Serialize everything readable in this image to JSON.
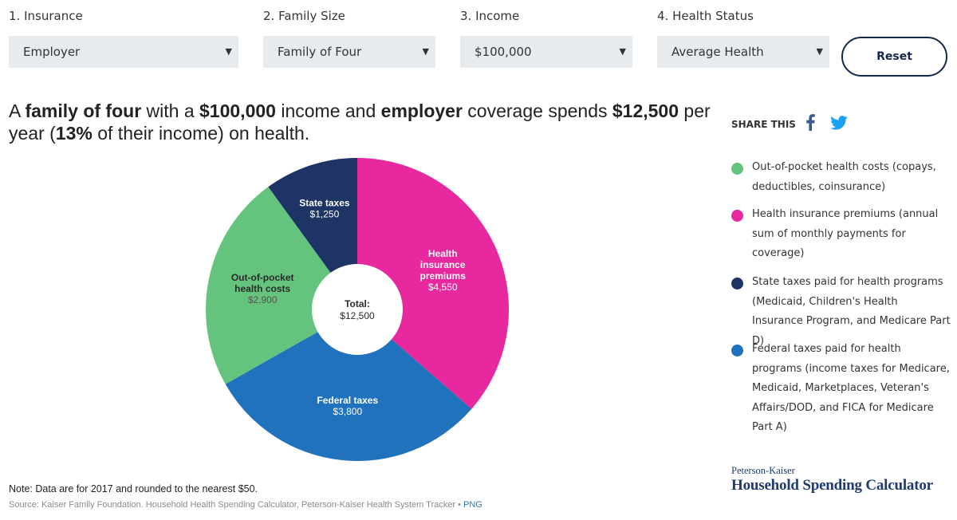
{
  "filters": [
    {
      "label": "1. Insurance",
      "value": "Employer"
    },
    {
      "label": "2. Family Size",
      "value": "Family of Four"
    },
    {
      "label": "3. Income",
      "value": "$100,000"
    },
    {
      "label": "4. Health Status",
      "value": "Average Health"
    }
  ],
  "reset_label": "Reset",
  "headline": {
    "p1": "A ",
    "b1": "family of four",
    "p2": " with a ",
    "b2": "$100,000",
    "p3": " income and ",
    "b3": "employer",
    "p4": " coverage spends ",
    "b4": "$12,500",
    "p5": " per year (",
    "b5": "13%",
    "p6": " of their income) on health."
  },
  "share": {
    "label": "SHARE THIS",
    "icons": [
      "facebook-icon",
      "twitter-icon"
    ],
    "facebook_color": "#3b5998",
    "twitter_color": "#1da1f2"
  },
  "legend": [
    {
      "text": "Out-of-pocket health costs (copays, deductibles, coinsurance)",
      "color": "#64c47d"
    },
    {
      "text": "Health insurance premiums (annual sum of monthly payments for coverage)",
      "color": "#e8289e"
    },
    {
      "text": "State taxes paid for health programs (Medicaid, Children's Health Insurance Program, and Medicare Part D)",
      "color": "#1d3464"
    },
    {
      "text": "Federal taxes paid for health programs (income taxes for Medicare, Medicaid, Marketplaces, Veteran's Affairs/DOD, and FICA for Medicare Part A)",
      "color": "#2172bd"
    }
  ],
  "brand": {
    "small": "Peterson-Kaiser",
    "large": "Household Spending Calculator"
  },
  "note": "Note: Data are for 2017 and rounded to the nearest $50.",
  "source": {
    "text": "Source: Kaiser Family Foundation. Household Health Spending Calculator, Peterson-Kaiser Health System Tracker • ",
    "link": "PNG"
  },
  "chart_data": {
    "type": "pie",
    "donut": true,
    "center_label": "Total:",
    "center_value": "$12,500",
    "slices": [
      {
        "label": [
          "Health",
          "insurance",
          "premiums"
        ],
        "display": "$4,550",
        "value": 4550,
        "color": "#e8289e"
      },
      {
        "label": [
          "Federal taxes"
        ],
        "display": "$3,800",
        "value": 3800,
        "color": "#2172bd"
      },
      {
        "label": [
          "Out-of-pocket",
          "health costs"
        ],
        "display": "$2,900",
        "value": 2900,
        "color": "#64c47d"
      },
      {
        "label": [
          "State taxes"
        ],
        "display": "$1,250",
        "value": 1250,
        "color": "#1d3464"
      }
    ]
  }
}
